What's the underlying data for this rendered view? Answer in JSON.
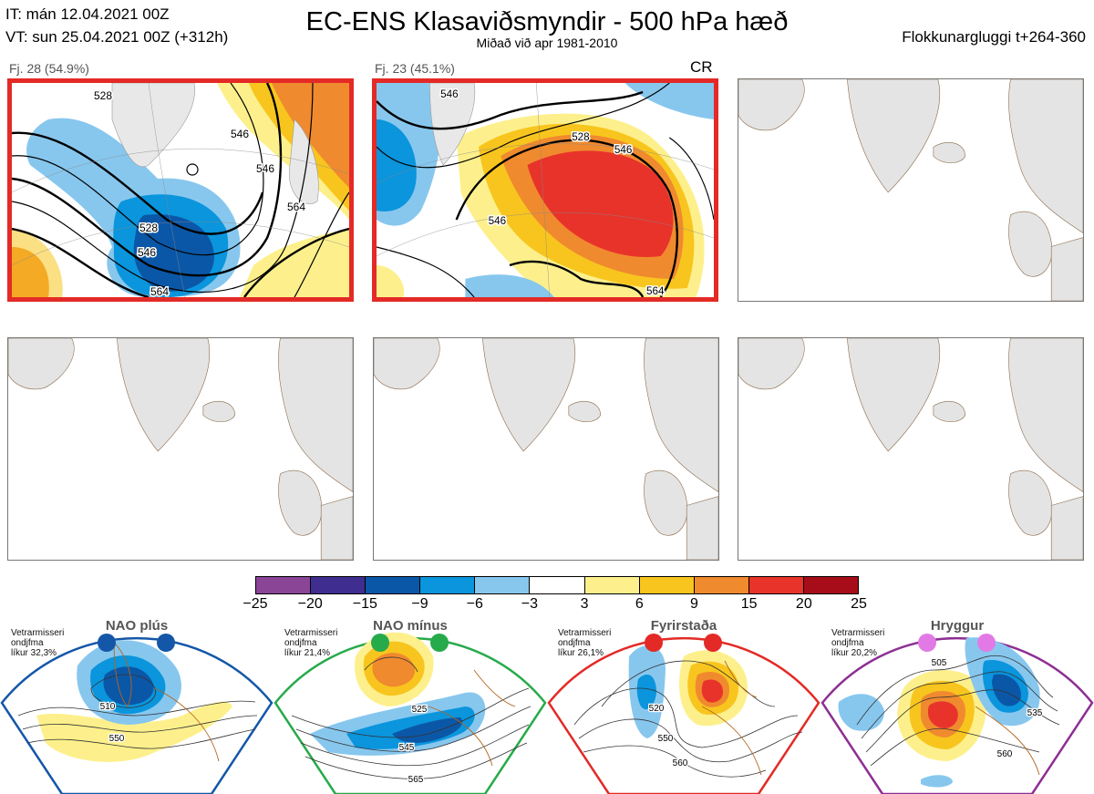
{
  "header": {
    "it_line": "IT: mán 12.04.2021 00Z",
    "vt_line": "VT: sun 25.04.2021 00Z  (+312h)",
    "title": "EC-ENS Klasaviðsmyndir - 500 hPa hæð",
    "subtitle": "Miðað við apr 1981-2010",
    "window": "Flokkunargluggi t+264-360"
  },
  "panels": [
    {
      "label": "Fj. 28 (54.9%)",
      "tag": "",
      "contours": [
        "528",
        "546",
        "564",
        "546",
        "528",
        "564",
        "546"
      ],
      "selected": true
    },
    {
      "label": "Fj. 23 (45.1%)",
      "tag": "CR",
      "contours": [
        "528",
        "546",
        "546",
        "564",
        "546"
      ],
      "selected": true
    },
    {
      "label": "",
      "tag": "",
      "contours": [],
      "selected": false
    },
    {
      "label": "",
      "tag": "",
      "contours": [],
      "selected": false
    },
    {
      "label": "",
      "tag": "",
      "contours": [],
      "selected": false
    },
    {
      "label": "",
      "tag": "",
      "contours": [],
      "selected": false
    }
  ],
  "colorbar": {
    "ticks": [
      "−25",
      "−20",
      "−15",
      "−9",
      "−6",
      "−3",
      "3",
      "6",
      "9",
      "15",
      "20",
      "25"
    ],
    "colors": [
      "#8a4597",
      "#3f2d8f",
      "#0b57a7",
      "#0a95dc",
      "#87c7ee",
      "#ffffff",
      "#fdf08c",
      "#f8c51e",
      "#f08a2e",
      "#e8332b",
      "#a70d18"
    ]
  },
  "regimes": [
    {
      "name": "NAO plús",
      "subtitle": [
        "Vetrarmisseri",
        "ondjfma",
        "líkur 32,3%"
      ],
      "dot_color": "#1457a8",
      "frame_color": "#1457a8",
      "contours": [
        "510",
        "550"
      ]
    },
    {
      "name": "NAO mínus",
      "subtitle": [
        "Vetrarmisseri",
        "ondjfma",
        "líkur 21,4%"
      ],
      "dot_color": "#27aa4a",
      "frame_color": "#27aa4a",
      "contours": [
        "525",
        "545",
        "565"
      ]
    },
    {
      "name": "Fyrirstaða",
      "subtitle": [
        "Vetrarmisseri",
        "ondjfma",
        "líkur 26,1%"
      ],
      "dot_color": "#e32a26",
      "frame_color": "#e32a26",
      "contours": [
        "520",
        "550",
        "560"
      ]
    },
    {
      "name": "Hryggur",
      "subtitle": [
        "Vetrarmisseri",
        "ondjfma",
        "líkur 20,2%"
      ],
      "dot_color": "#e27ae6",
      "frame_color": "#8d2f93",
      "contours": [
        "505",
        "535",
        "560"
      ]
    }
  ]
}
